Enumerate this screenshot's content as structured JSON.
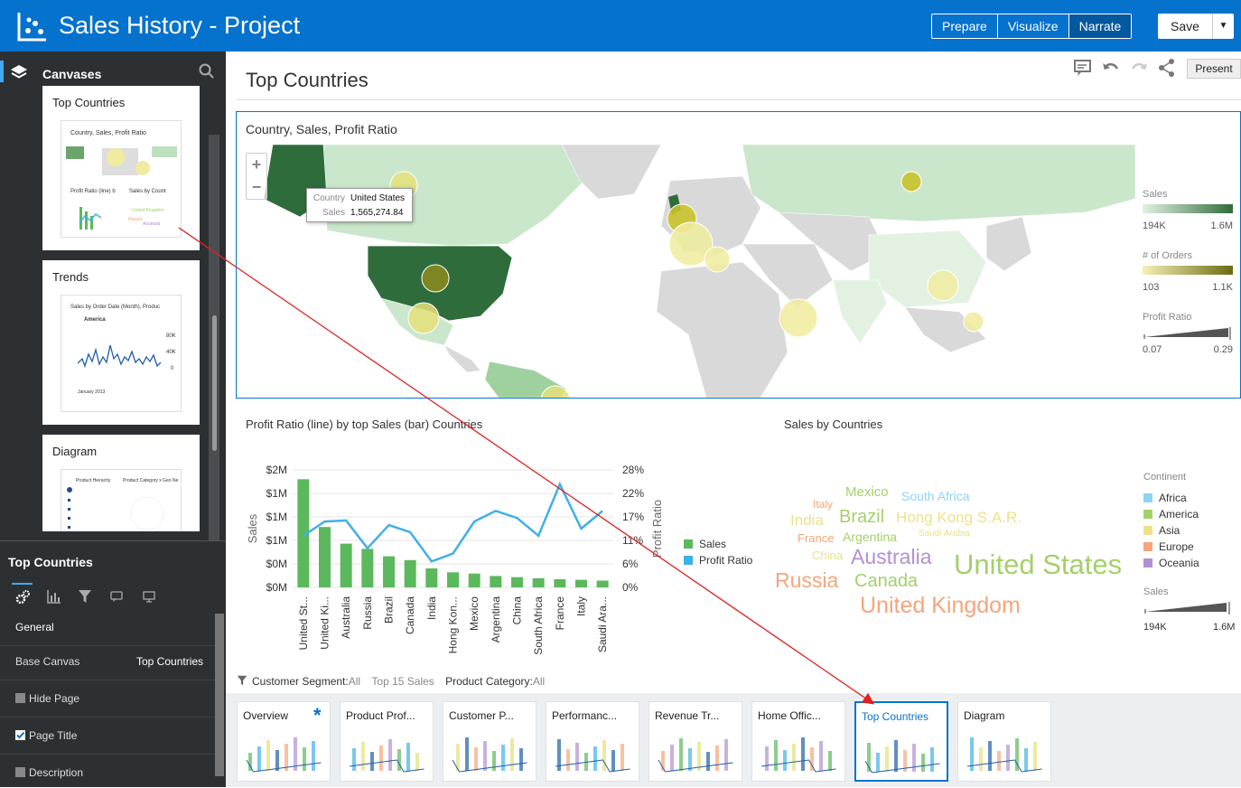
{
  "header": {
    "title": "Sales History - Project",
    "modes": [
      "Prepare",
      "Visualize",
      "Narrate"
    ],
    "active_mode": "Narrate",
    "save_label": "Save",
    "save_dropdown": "▼"
  },
  "sidebar": {
    "title": "Canvases",
    "canvases": [
      {
        "label": "Top Countries",
        "thumb_title": "Country, Sales, Profit Ratio",
        "thumb_sub1": "Profit Ratio (line) b",
        "thumb_sub2": "Sales by Count"
      },
      {
        "label": "Trends",
        "thumb_title": "Sales by Order Date (Month), Produc",
        "thumb_sub": "America",
        "thumb_y1": "80K",
        "thumb_y2": "40K",
        "thumb_y3": "0",
        "thumb_x": "January 2013"
      },
      {
        "label": "Diagram",
        "thumb_title": "Product Hierachy",
        "thumb_sub": "Product Category x Geo Ne"
      }
    ]
  },
  "properties": {
    "title": "Top Countries",
    "section": "General",
    "base_canvas_label": "Base Canvas",
    "base_canvas_value": "Top Countries",
    "hide_page_label": "Hide Page",
    "hide_page_checked": false,
    "page_title_label": "Page Title",
    "page_title_checked": true,
    "description_label": "Description",
    "description_checked": false
  },
  "canvas": {
    "title": "Top Countries",
    "present_label": "Present"
  },
  "map": {
    "title": "Country, Sales, Profit Ratio",
    "tooltip": {
      "k1": "Country",
      "v1": "United States",
      "k2": "Sales",
      "v2": "1,565,274.84"
    },
    "legend": {
      "sales_title": "Sales",
      "sales_min": "194K",
      "sales_max": "1.6M",
      "orders_title": "# of Orders",
      "orders_min": "103",
      "orders_max": "1.1K",
      "profit_title": "Profit Ratio",
      "profit_min": "0.07",
      "profit_max": "0.29"
    },
    "colors": {
      "low": "#e3f1e3",
      "high": "#2f6c3b",
      "bubble": "#e5e07a",
      "bubble_dark": "#8b8b1c"
    }
  },
  "combo": {
    "title": "Profit Ratio (line) by top Sales (bar) Countries",
    "y_left_label": "Sales",
    "y_right_label": "Profit Ratio",
    "y_left_ticks": [
      "$2M",
      "$1M",
      "$1M",
      "$1M",
      "$0M",
      "$0M"
    ],
    "y_right_ticks": [
      "28%",
      "22%",
      "17%",
      "11%",
      "6%",
      "0%"
    ],
    "legend": [
      {
        "name": "Sales",
        "color": "#5cb85c"
      },
      {
        "name": "Profit Ratio",
        "color": "#40b0e8"
      }
    ]
  },
  "chart_data": {
    "type": "bar",
    "title": "Profit Ratio (line) by top Sales (bar) Countries",
    "categories": [
      "United St...",
      "United Ki...",
      "Australia",
      "Russia",
      "Brazil",
      "Canada",
      "India",
      "Hong Kon...",
      "Mexico",
      "Argentina",
      "China",
      "South Africa",
      "France",
      "Italy",
      "Saudi Ara..."
    ],
    "series": [
      {
        "name": "Sales",
        "type": "bar",
        "axis": "left",
        "values": [
          1565000,
          874000,
          633000,
          558000,
          450000,
          395000,
          275000,
          218000,
          200000,
          165000,
          148000,
          132000,
          118000,
          110000,
          98000
        ]
      },
      {
        "name": "Profit Ratio",
        "type": "line",
        "axis": "right",
        "values": [
          0.145,
          0.185,
          0.188,
          0.11,
          0.175,
          0.155,
          0.073,
          0.095,
          0.185,
          0.215,
          0.195,
          0.145,
          0.29,
          0.165,
          0.215
        ]
      }
    ],
    "ylabel": "Sales",
    "y2label": "Profit Ratio",
    "ylim": [
      0,
      1700000
    ],
    "y2lim": [
      0,
      0.33
    ]
  },
  "wordcloud": {
    "title": "Sales by Countries",
    "words": [
      {
        "text": "Mexico",
        "color": "#a4d06a",
        "size": 15
      },
      {
        "text": "South Africa",
        "color": "#8fd3f4",
        "size": 14
      },
      {
        "text": "Italy",
        "color": "#f6a57a",
        "size": 12
      },
      {
        "text": "India",
        "color": "#ece28a",
        "size": 17
      },
      {
        "text": "Brazil",
        "color": "#a4d06a",
        "size": 20
      },
      {
        "text": "Hong Kong S.A.R.",
        "color": "#ece28a",
        "size": 17
      },
      {
        "text": "France",
        "color": "#f6a57a",
        "size": 13
      },
      {
        "text": "Argentina",
        "color": "#a4d06a",
        "size": 14
      },
      {
        "text": "Saudi Arabia",
        "color": "#ece28a",
        "size": 10
      },
      {
        "text": "China",
        "color": "#ece28a",
        "size": 13
      },
      {
        "text": "Australia",
        "color": "#b190d4",
        "size": 23
      },
      {
        "text": "United States",
        "color": "#a4d06a",
        "size": 31
      },
      {
        "text": "Russia",
        "color": "#f6a57a",
        "size": 23
      },
      {
        "text": "Canada",
        "color": "#a4d06a",
        "size": 20
      },
      {
        "text": "United Kingdom",
        "color": "#f6a57a",
        "size": 25
      }
    ],
    "legend_title": "Continent",
    "continents": [
      {
        "name": "Africa",
        "color": "#8fd3f4"
      },
      {
        "name": "America",
        "color": "#a4d06a"
      },
      {
        "name": "Asia",
        "color": "#ece28a"
      },
      {
        "name": "Europe",
        "color": "#f6a57a"
      },
      {
        "name": "Oceania",
        "color": "#b190d4"
      }
    ],
    "sales_title": "Sales",
    "sales_min": "194K",
    "sales_max": "1.6M"
  },
  "filters": {
    "seg_key": "Customer Segment:",
    "seg_val": "All",
    "top": "Top 15 Sales",
    "cat_key": "Product Category:",
    "cat_val": "All"
  },
  "pages": [
    {
      "label": "Overview"
    },
    {
      "label": "Product Prof..."
    },
    {
      "label": "Customer P..."
    },
    {
      "label": "Performanc..."
    },
    {
      "label": "Revenue Tr..."
    },
    {
      "label": "Home Offic..."
    },
    {
      "label": "Top Countries"
    },
    {
      "label": "Diagram"
    }
  ],
  "selected_page": "Top Countries"
}
